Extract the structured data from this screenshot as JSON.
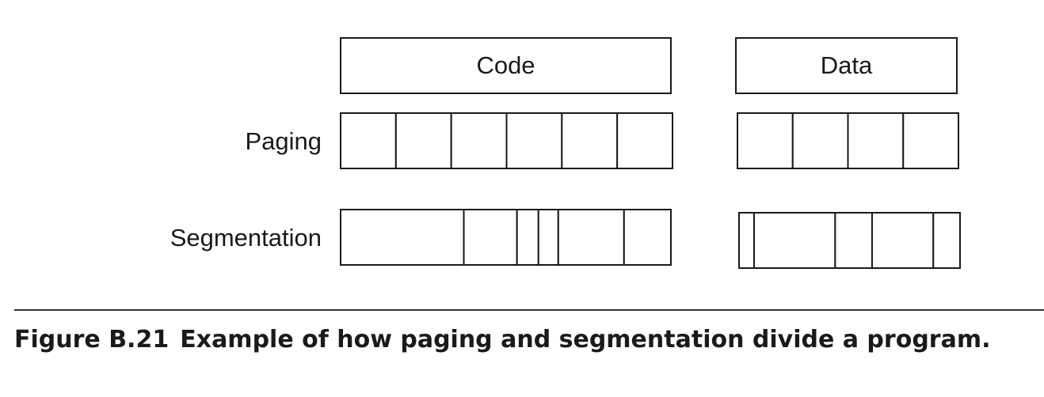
{
  "diagram": {
    "code_label": "Code",
    "data_label": "Data",
    "paging_label": "Paging",
    "segmentation_label": "Segmentation",
    "paging": {
      "code_page_count": 6,
      "data_page_count": 4
    },
    "segmentation": {
      "code_segment_fractions": [
        0.373,
        0.161,
        0.065,
        0.06,
        0.199,
        0.142
      ],
      "data_segment_fractions": [
        0.068,
        0.367,
        0.167,
        0.277,
        0.121
      ]
    }
  },
  "caption": {
    "figure_number": "Figure B.21",
    "text": "Example of how paging and segmentation divide a program."
  },
  "colors": {
    "stroke": "#1a1a1a",
    "background": "#ffffff"
  }
}
